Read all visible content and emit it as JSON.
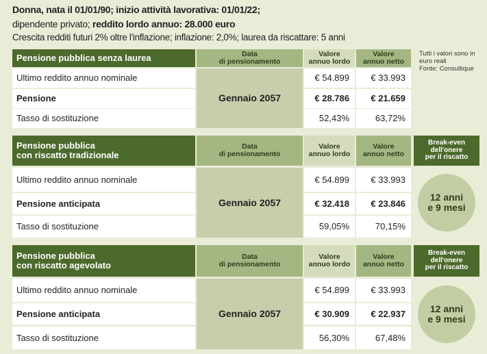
{
  "intro": {
    "line1": "Donna, nata il 01/01/90; inizio attività lavorativa: 01/01/22;",
    "line2_normal": "dipendente privato; ",
    "line2_bold": "reddito lordo annuo: 28.000 euro",
    "line3": "Crescita redditi futuri 2% oltre l'inflazione; inflazione: 2,0%; laurea da riscattare: 5 anni"
  },
  "note": {
    "text": "Tutti i valori sono in euro reali",
    "source": "Fonte: Consultique"
  },
  "tables": [
    {
      "title": "Pensione pubblica senza laurea",
      "columns": [
        "Data\ndi pensionamento",
        "Valore\nannuo lordo",
        "Valore\nannuo netto"
      ],
      "date": "Gennaio 2057",
      "rows": [
        [
          "Ultimo reddito annuo nominale",
          "€ 54.899",
          "€ 33.993"
        ],
        [
          "Pensione",
          "€ 28.786",
          "€ 21.659"
        ],
        [
          "Tasso di sostituzione",
          "52,43%",
          "63,72%"
        ]
      ]
    },
    {
      "title": "Pensione pubblica\ncon riscatto tradizionale",
      "columns": [
        "Data\ndi pensionamento",
        "Valore\nannuo lordo",
        "Valore\nannuo netto"
      ],
      "date": "Gennaio 2057",
      "break_even_header": "Break-even\ndell'onere\nper il riscatto",
      "break_even": "12 anni\ne 9 mesi",
      "rows": [
        [
          "Ultimo reddito annuo nominale",
          "€ 54.899",
          "€ 33.993"
        ],
        [
          "Pensione anticipata",
          "€ 32.418",
          "€ 23.846"
        ],
        [
          "Tasso di sostituzione",
          "59,05%",
          "70,15%"
        ]
      ]
    },
    {
      "title": "Pensione pubblica\ncon riscatto agevolato",
      "columns": [
        "Data\ndi pensionamento",
        "Valore\nannuo lordo",
        "Valore\nannuo netto"
      ],
      "date": "Gennaio 2057",
      "break_even_header": "Break-even\ndell'onere\nper il riscatto",
      "break_even": "12 anni\ne 9 mesi",
      "rows": [
        [
          "Ultimo reddito annuo nominale",
          "€ 54.899",
          "€ 33.993"
        ],
        [
          "Pensione anticipata",
          "€ 30.909",
          "€ 22.937"
        ],
        [
          "Tasso di sostituzione",
          "56,30%",
          "67,48%"
        ]
      ]
    }
  ]
}
